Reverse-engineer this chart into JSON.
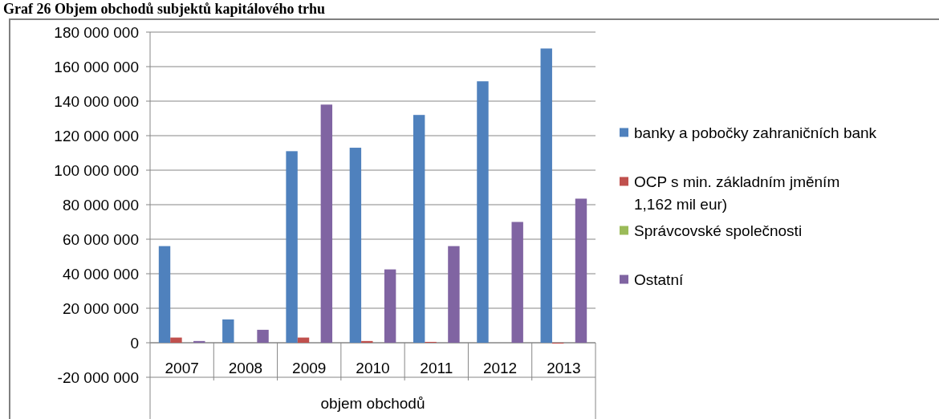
{
  "chart_data": {
    "type": "bar",
    "title": "Graf 26 Objem obchodů subjektů kapitálového trhu",
    "xlabel": "objem obchodů",
    "categories": [
      "2007",
      "2008",
      "2009",
      "2010",
      "2011",
      "2012",
      "2013"
    ],
    "series": [
      {
        "name": "banky a pobočky zahraničních bank",
        "color": "#4f81bd",
        "values": [
          56000000,
          13500000,
          111000000,
          113000000,
          132000000,
          151500000,
          170500000
        ]
      },
      {
        "name": "OCP s min. základním jměním 1,162 mil eur)",
        "color": "#c0504d",
        "values": [
          3000000,
          null,
          3000000,
          1000000,
          500000,
          null,
          -500000
        ]
      },
      {
        "name": "Správcovské společnosti",
        "color": "#9bbb59",
        "values": [
          null,
          null,
          null,
          null,
          null,
          null,
          null
        ]
      },
      {
        "name": "Ostatní",
        "color": "#8064a2",
        "values": [
          1000000,
          7500000,
          138000000,
          42500000,
          56000000,
          70000000,
          83500000
        ]
      }
    ],
    "ylim": [
      -20000000,
      180000000
    ],
    "yticks": [
      {
        "value": -20000000,
        "label": "-20 000 000"
      },
      0,
      {
        "value": 20000000,
        "label": "20 000 000"
      },
      {
        "value": 40000000,
        "label": "40 000 000"
      },
      {
        "value": 60000000,
        "label": "60 000 000"
      },
      {
        "value": 80000000,
        "label": "80 000 000"
      },
      {
        "value": 100000000,
        "label": "100 000 000"
      },
      {
        "value": 120000000,
        "label": "120 000 000"
      },
      {
        "value": 140000000,
        "label": "140 000 000"
      },
      {
        "value": 160000000,
        "label": "160 000 000"
      },
      {
        "value": 180000000,
        "label": "180 000 000"
      }
    ],
    "grid": "y",
    "legend": "right"
  }
}
